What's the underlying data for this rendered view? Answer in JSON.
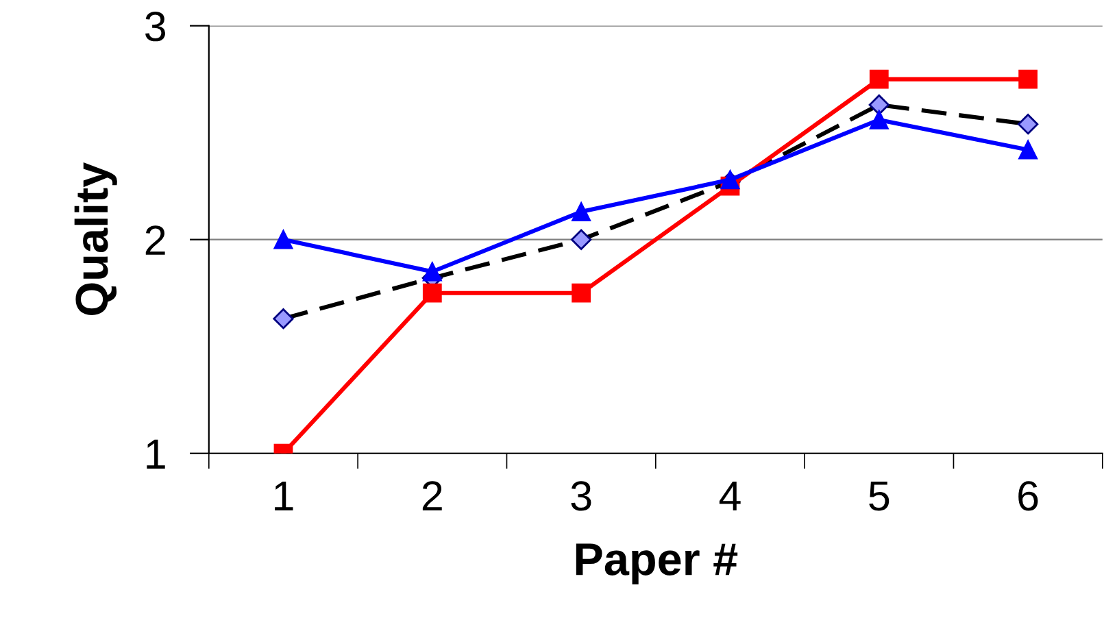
{
  "chart_data": {
    "type": "line",
    "xlabel": "Paper #",
    "ylabel": "Quality",
    "categories": [
      "1",
      "2",
      "3",
      "4",
      "5",
      "6"
    ],
    "series": [
      {
        "color": "#0000ff",
        "marker": "triangle",
        "line_style": "solid",
        "values": [
          2.0,
          1.85,
          2.13,
          2.28,
          2.56,
          2.42
        ]
      },
      {
        "color": "#ff0000",
        "marker": "square",
        "line_style": "solid",
        "values": [
          1.0,
          1.75,
          1.75,
          2.25,
          2.75,
          2.75
        ]
      },
      {
        "color": "#9999ff",
        "marker": "diamond",
        "line_style": "dashed",
        "values": [
          1.63,
          1.82,
          2.0,
          2.27,
          2.63,
          2.54
        ]
      }
    ],
    "ylim": [
      1,
      3
    ],
    "yticks": [
      1,
      2,
      3
    ],
    "grid": "y",
    "legend": false
  }
}
